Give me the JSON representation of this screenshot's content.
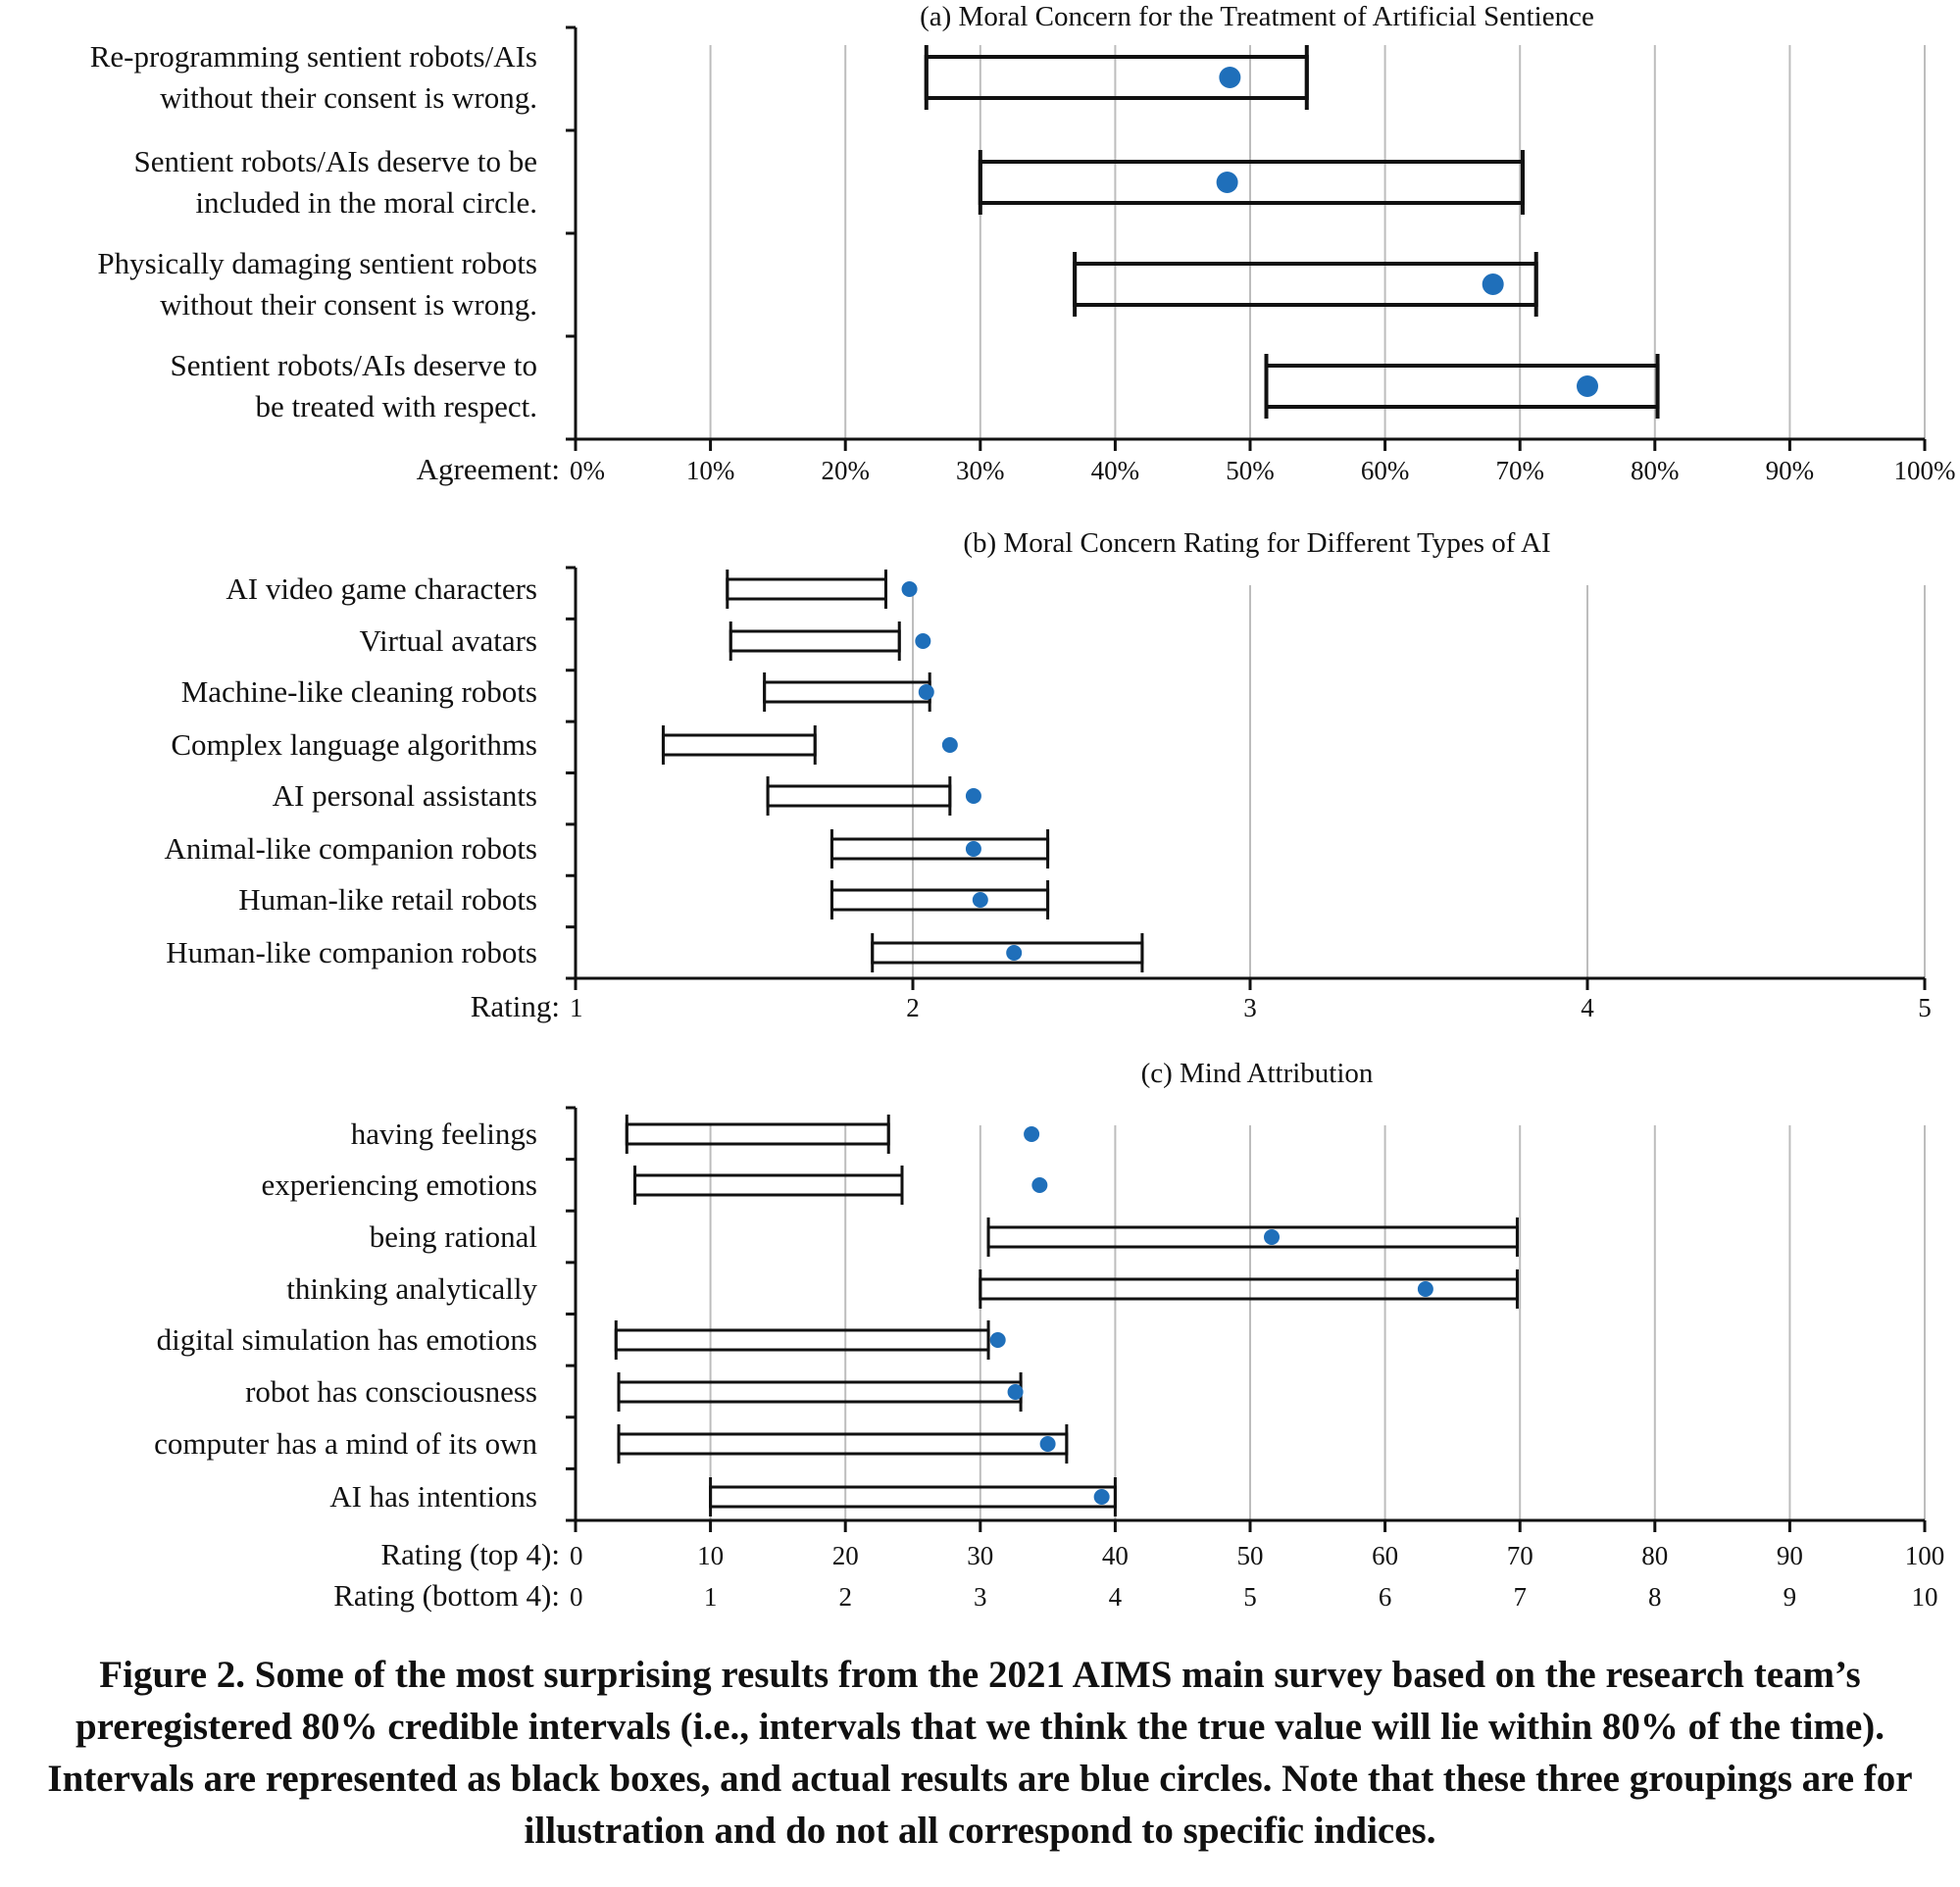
{
  "chart_data": [
    {
      "type": "interval-dot",
      "title": "(a) Moral Concern for the Treatment of Artificial Sentience",
      "xlabel": "Agreement:",
      "xlim": [
        0,
        100
      ],
      "xticks": [
        0,
        10,
        20,
        30,
        40,
        50,
        60,
        70,
        80,
        90,
        100
      ],
      "xtick_labels": [
        "0%",
        "10%",
        "20%",
        "30%",
        "40%",
        "50%",
        "60%",
        "70%",
        "80%",
        "90%",
        "100%"
      ],
      "grid": true,
      "colors": {
        "point": "#1f6fba",
        "interval": "#111111",
        "grid": "#bdbdbd"
      },
      "items": [
        {
          "label": [
            "Re-programming sentient robots/AIs",
            "without their consent is wrong."
          ],
          "interval": [
            26,
            54.2
          ],
          "actual": 48.5
        },
        {
          "label": [
            "Sentient robots/AIs deserve to be",
            "included in the moral circle."
          ],
          "interval": [
            30,
            70.2
          ],
          "actual": 48.3
        },
        {
          "label": [
            "Physically damaging sentient robots",
            "without their consent is wrong."
          ],
          "interval": [
            37,
            71.2
          ],
          "actual": 68
        },
        {
          "label": [
            "Sentient robots/AIs deserve to",
            "be treated with respect."
          ],
          "interval": [
            51.2,
            80.2
          ],
          "actual": 75
        }
      ]
    },
    {
      "type": "interval-dot",
      "title": "(b) Moral Concern Rating for Different Types of AI",
      "xlabel": "Rating:",
      "xlim": [
        1,
        5
      ],
      "xticks": [
        1,
        2,
        3,
        4,
        5
      ],
      "xtick_labels": [
        "1",
        "2",
        "3",
        "4",
        "5"
      ],
      "grid": true,
      "colors": {
        "point": "#1f6fba",
        "interval": "#111111",
        "grid": "#bdbdbd"
      },
      "items": [
        {
          "label": [
            "AI video game characters"
          ],
          "interval": [
            1.45,
            1.92
          ],
          "actual": 1.99
        },
        {
          "label": [
            "Virtual avatars"
          ],
          "interval": [
            1.46,
            1.96
          ],
          "actual": 2.03
        },
        {
          "label": [
            "Machine-like cleaning robots"
          ],
          "interval": [
            1.56,
            2.05
          ],
          "actual": 2.04
        },
        {
          "label": [
            "Complex language algorithms"
          ],
          "interval": [
            1.26,
            1.71
          ],
          "actual": 2.11
        },
        {
          "label": [
            "AI personal assistants"
          ],
          "interval": [
            1.57,
            2.11
          ],
          "actual": 2.18
        },
        {
          "label": [
            "Animal-like companion robots"
          ],
          "interval": [
            1.76,
            2.4
          ],
          "actual": 2.18
        },
        {
          "label": [
            "Human-like retail robots"
          ],
          "interval": [
            1.76,
            2.4
          ],
          "actual": 2.2
        },
        {
          "label": [
            "Human-like companion robots"
          ],
          "interval": [
            1.88,
            2.68
          ],
          "actual": 2.3
        }
      ]
    },
    {
      "type": "interval-dot",
      "title": "(c) Mind Attribution",
      "xlabel": "Rating (top 4):",
      "xlabel2": "Rating (bottom 4):",
      "xlim": [
        0,
        100
      ],
      "xticks": [
        0,
        10,
        20,
        30,
        40,
        50,
        60,
        70,
        80,
        90,
        100
      ],
      "xtick_labels": [
        "0",
        "10",
        "20",
        "30",
        "40",
        "50",
        "60",
        "70",
        "80",
        "90",
        "100"
      ],
      "xtick_labels2": [
        "0",
        "1",
        "2",
        "3",
        "4",
        "5",
        "6",
        "7",
        "8",
        "9",
        "10"
      ],
      "grid": true,
      "colors": {
        "point": "#1f6fba",
        "interval": "#111111",
        "grid": "#bdbdbd"
      },
      "items": [
        {
          "label": [
            "having feelings"
          ],
          "interval": [
            3.8,
            23.2
          ],
          "actual": 33.8
        },
        {
          "label": [
            "experiencing emotions"
          ],
          "interval": [
            4.4,
            24.2
          ],
          "actual": 34.4
        },
        {
          "label": [
            "being rational"
          ],
          "interval": [
            30.6,
            69.8
          ],
          "actual": 51.6
        },
        {
          "label": [
            "thinking analytically"
          ],
          "interval": [
            30,
            69.8
          ],
          "actual": 63
        },
        {
          "label": [
            "digital simulation has emotions"
          ],
          "interval": [
            3,
            30.6
          ],
          "actual": 31.3
        },
        {
          "label": [
            "robot has consciousness"
          ],
          "interval": [
            3.2,
            33
          ],
          "actual": 32.6
        },
        {
          "label": [
            "computer has a mind of its own"
          ],
          "interval": [
            3.2,
            36.4
          ],
          "actual": 35
        },
        {
          "label": [
            "AI has intentions"
          ],
          "interval": [
            10,
            40
          ],
          "actual": 39
        }
      ]
    }
  ],
  "caption": "Figure 2. Some of the most surprising results from the 2021 AIMS main survey based on the research team’s preregistered 80% credible intervals (i.e., intervals that we think the true value will lie within 80% of the time). Intervals are represented as black boxes, and actual results are blue circles. Note that these three groupings are for illustration and do not all correspond to specific indices."
}
